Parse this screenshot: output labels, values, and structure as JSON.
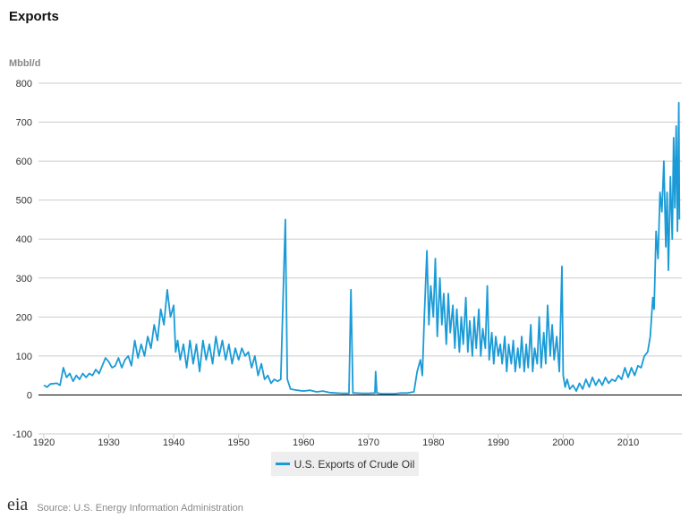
{
  "chart_data": {
    "type": "line",
    "title": "Exports",
    "ylabel": "Mbbl/d",
    "xlabel": "",
    "ylim": [
      -100,
      800
    ],
    "xlim": [
      1919,
      2018
    ],
    "yticks": [
      -100,
      0,
      100,
      200,
      300,
      400,
      500,
      600,
      700,
      800
    ],
    "xticks": [
      1920,
      1930,
      1940,
      1950,
      1960,
      1970,
      1980,
      1990,
      2000,
      2010
    ],
    "grid": true,
    "legend_placement": "bottom-center",
    "series": [
      {
        "name": "U.S. Exports of Crude Oil",
        "color": "#1a9bd7",
        "points": [
          [
            1920,
            25
          ],
          [
            1920.5,
            20
          ],
          [
            1921,
            28
          ],
          [
            1922,
            30
          ],
          [
            1922.5,
            25
          ],
          [
            1923,
            70
          ],
          [
            1923.5,
            45
          ],
          [
            1924,
            55
          ],
          [
            1924.5,
            35
          ],
          [
            1925,
            50
          ],
          [
            1925.5,
            40
          ],
          [
            1926,
            55
          ],
          [
            1926.5,
            45
          ],
          [
            1927,
            55
          ],
          [
            1927.5,
            50
          ],
          [
            1928,
            65
          ],
          [
            1928.5,
            55
          ],
          [
            1929,
            75
          ],
          [
            1929.5,
            95
          ],
          [
            1930,
            85
          ],
          [
            1930.5,
            70
          ],
          [
            1931,
            75
          ],
          [
            1931.5,
            95
          ],
          [
            1932,
            70
          ],
          [
            1932.5,
            90
          ],
          [
            1933,
            100
          ],
          [
            1933.5,
            75
          ],
          [
            1934,
            140
          ],
          [
            1934.5,
            95
          ],
          [
            1935,
            130
          ],
          [
            1935.5,
            100
          ],
          [
            1936,
            150
          ],
          [
            1936.5,
            120
          ],
          [
            1937,
            180
          ],
          [
            1937.5,
            140
          ],
          [
            1938,
            220
          ],
          [
            1938.5,
            180
          ],
          [
            1939,
            270
          ],
          [
            1939.5,
            200
          ],
          [
            1940,
            230
          ],
          [
            1940.3,
            110
          ],
          [
            1940.6,
            140
          ],
          [
            1941,
            90
          ],
          [
            1941.5,
            130
          ],
          [
            1942,
            70
          ],
          [
            1942.5,
            140
          ],
          [
            1943,
            80
          ],
          [
            1943.5,
            130
          ],
          [
            1944,
            60
          ],
          [
            1944.5,
            140
          ],
          [
            1945,
            90
          ],
          [
            1945.5,
            130
          ],
          [
            1946,
            80
          ],
          [
            1946.5,
            150
          ],
          [
            1947,
            100
          ],
          [
            1947.5,
            140
          ],
          [
            1948,
            90
          ],
          [
            1948.5,
            130
          ],
          [
            1949,
            80
          ],
          [
            1949.5,
            120
          ],
          [
            1950,
            90
          ],
          [
            1950.5,
            120
          ],
          [
            1951,
            100
          ],
          [
            1951.5,
            110
          ],
          [
            1952,
            70
          ],
          [
            1952.5,
            100
          ],
          [
            1953,
            50
          ],
          [
            1953.5,
            80
          ],
          [
            1954,
            40
          ],
          [
            1954.5,
            50
          ],
          [
            1955,
            30
          ],
          [
            1955.5,
            40
          ],
          [
            1956,
            35
          ],
          [
            1956.5,
            40
          ],
          [
            1957,
            340
          ],
          [
            1957.2,
            450
          ],
          [
            1957.5,
            40
          ],
          [
            1958,
            15
          ],
          [
            1959,
            12
          ],
          [
            1960,
            10
          ],
          [
            1961,
            12
          ],
          [
            1962,
            8
          ],
          [
            1963,
            10
          ],
          [
            1964,
            6
          ],
          [
            1965,
            5
          ],
          [
            1966,
            4
          ],
          [
            1967,
            4
          ],
          [
            1967.3,
            270
          ],
          [
            1967.6,
            5
          ],
          [
            1968,
            5
          ],
          [
            1969,
            4
          ],
          [
            1970,
            4
          ],
          [
            1971,
            5
          ],
          [
            1971.1,
            60
          ],
          [
            1971.3,
            5
          ],
          [
            1972,
            3
          ],
          [
            1973,
            3
          ],
          [
            1974,
            3
          ],
          [
            1975,
            5
          ],
          [
            1976,
            5
          ],
          [
            1977,
            8
          ],
          [
            1977.5,
            60
          ],
          [
            1978,
            90
          ],
          [
            1978.3,
            50
          ],
          [
            1978.6,
            200
          ],
          [
            1979,
            370
          ],
          [
            1979.3,
            180
          ],
          [
            1979.6,
            280
          ],
          [
            1980,
            200
          ],
          [
            1980.3,
            350
          ],
          [
            1980.6,
            150
          ],
          [
            1981,
            300
          ],
          [
            1981.3,
            180
          ],
          [
            1981.6,
            260
          ],
          [
            1982,
            130
          ],
          [
            1982.3,
            260
          ],
          [
            1982.6,
            160
          ],
          [
            1983,
            230
          ],
          [
            1983.3,
            120
          ],
          [
            1983.6,
            220
          ],
          [
            1984,
            110
          ],
          [
            1984.3,
            200
          ],
          [
            1984.6,
            130
          ],
          [
            1985,
            250
          ],
          [
            1985.3,
            110
          ],
          [
            1985.6,
            190
          ],
          [
            1986,
            100
          ],
          [
            1986.3,
            200
          ],
          [
            1986.6,
            120
          ],
          [
            1987,
            220
          ],
          [
            1987.3,
            100
          ],
          [
            1987.6,
            170
          ],
          [
            1988,
            120
          ],
          [
            1988.3,
            280
          ],
          [
            1988.6,
            90
          ],
          [
            1989,
            160
          ],
          [
            1989.3,
            80
          ],
          [
            1989.6,
            150
          ],
          [
            1990,
            100
          ],
          [
            1990.3,
            130
          ],
          [
            1990.6,
            80
          ],
          [
            1991,
            150
          ],
          [
            1991.3,
            60
          ],
          [
            1991.6,
            130
          ],
          [
            1992,
            80
          ],
          [
            1992.3,
            140
          ],
          [
            1992.6,
            60
          ],
          [
            1993,
            120
          ],
          [
            1993.3,
            70
          ],
          [
            1993.6,
            150
          ],
          [
            1994,
            60
          ],
          [
            1994.3,
            130
          ],
          [
            1994.6,
            70
          ],
          [
            1995,
            180
          ],
          [
            1995.3,
            60
          ],
          [
            1995.6,
            120
          ],
          [
            1996,
            80
          ],
          [
            1996.3,
            200
          ],
          [
            1996.6,
            70
          ],
          [
            1997,
            160
          ],
          [
            1997.3,
            80
          ],
          [
            1997.6,
            230
          ],
          [
            1998,
            100
          ],
          [
            1998.3,
            180
          ],
          [
            1998.6,
            90
          ],
          [
            1999,
            150
          ],
          [
            1999.4,
            60
          ],
          [
            1999.8,
            330
          ],
          [
            2000,
            50
          ],
          [
            2000.3,
            20
          ],
          [
            2000.6,
            40
          ],
          [
            2001,
            15
          ],
          [
            2001.5,
            25
          ],
          [
            2002,
            10
          ],
          [
            2002.5,
            30
          ],
          [
            2003,
            15
          ],
          [
            2003.5,
            40
          ],
          [
            2004,
            20
          ],
          [
            2004.5,
            45
          ],
          [
            2005,
            25
          ],
          [
            2005.5,
            40
          ],
          [
            2006,
            25
          ],
          [
            2006.5,
            45
          ],
          [
            2007,
            30
          ],
          [
            2007.5,
            40
          ],
          [
            2008,
            35
          ],
          [
            2008.5,
            50
          ],
          [
            2009,
            40
          ],
          [
            2009.5,
            70
          ],
          [
            2010,
            45
          ],
          [
            2010.5,
            70
          ],
          [
            2011,
            50
          ],
          [
            2011.5,
            75
          ],
          [
            2012,
            70
          ],
          [
            2012.5,
            100
          ],
          [
            2013,
            110
          ],
          [
            2013.4,
            150
          ],
          [
            2013.8,
            250
          ],
          [
            2014,
            220
          ],
          [
            2014.3,
            420
          ],
          [
            2014.6,
            350
          ],
          [
            2014.9,
            520
          ],
          [
            2015.2,
            470
          ],
          [
            2015.5,
            600
          ],
          [
            2015.8,
            380
          ],
          [
            2016,
            520
          ],
          [
            2016.2,
            320
          ],
          [
            2016.5,
            560
          ],
          [
            2016.8,
            400
          ],
          [
            2017,
            660
          ],
          [
            2017.2,
            480
          ],
          [
            2017.4,
            690
          ],
          [
            2017.6,
            420
          ],
          [
            2017.8,
            750
          ],
          [
            2017.9,
            450
          ]
        ]
      }
    ]
  },
  "footer": {
    "source": "Source: U.S. Energy Information Administration",
    "logo": "eia"
  }
}
